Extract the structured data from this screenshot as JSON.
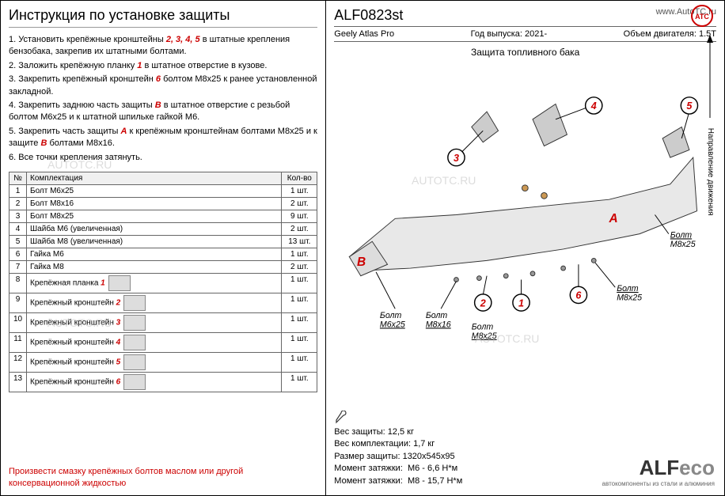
{
  "colors": {
    "accent": "#c00",
    "border": "#666",
    "muted": "#888"
  },
  "left": {
    "title": "Инструкция по установке защиты",
    "steps": {
      "s1a": "1. Установить крепёжные кронштейны ",
      "s1nums": "2, 3, 4, 5",
      "s1b": " в штатные крепления бензобака, закрепив их штатными болтами.",
      "s2a": "2. Заложить крепёжную планку ",
      "s2num": "1",
      "s2b": " в штатное отверстие в кузове.",
      "s3a": "3. Закрепить крепёжный кронштейн ",
      "s3num": "6",
      "s3b": " болтом M8x25 к ранее установленной закладной.",
      "s4a": "4. Закрепить заднюю часть защиты ",
      "s4num": "В",
      "s4b": " в штатное отверстие с резьбой болтом M6x25 и к штатной шпильке гайкой M6.",
      "s5a": "5. Закрепить часть защиты ",
      "s5numA": "А",
      "s5m": " к крепёжным кронштейнам болтами M8x25 и к защите ",
      "s5numB": "В",
      "s5b": " болтами M8x16.",
      "s6": "6. Все точки крепления затянуть."
    },
    "table": {
      "h_no": "№",
      "h_name": "Комплектация",
      "h_qty": "Кол-во",
      "rows": [
        {
          "no": "1",
          "name": "Болт M6x25",
          "qty": "1 шт.",
          "img": false
        },
        {
          "no": "2",
          "name": "Болт M8x16",
          "qty": "2 шт.",
          "img": false
        },
        {
          "no": "3",
          "name": "Болт M8x25",
          "qty": "9 шт.",
          "img": false
        },
        {
          "no": "4",
          "name": "Шайба M6 (увеличенная)",
          "qty": "2 шт.",
          "img": false
        },
        {
          "no": "5",
          "name": "Шайба M8 (увеличенная)",
          "qty": "13 шт.",
          "img": false
        },
        {
          "no": "6",
          "name": "Гайка M6",
          "qty": "1 шт.",
          "img": false
        },
        {
          "no": "7",
          "name": "Гайка M8",
          "qty": "2 шт.",
          "img": false
        },
        {
          "no": "8",
          "name": "Крепёжная планка",
          "mark": "1",
          "qty": "1 шт.",
          "img": true
        },
        {
          "no": "9",
          "name": "Крепёжный кронштейн",
          "mark": "2",
          "qty": "1 шт.",
          "img": true
        },
        {
          "no": "10",
          "name": "Крепёжный кронштейн",
          "mark": "3",
          "qty": "1 шт.",
          "img": true
        },
        {
          "no": "11",
          "name": "Крепёжный кронштейн",
          "mark": "4",
          "qty": "1 шт.",
          "img": true
        },
        {
          "no": "12",
          "name": "Крепёжный кронштейн",
          "mark": "5",
          "qty": "1 шт.",
          "img": true
        },
        {
          "no": "13",
          "name": "Крепёжный кронштейн",
          "mark": "6",
          "qty": "1 шт.",
          "img": true
        }
      ]
    },
    "footer1": "Произвести смазку крепёжных болтов маслом или другой",
    "footer2": "консервационной жидкостью"
  },
  "right": {
    "part_no": "ALF0823st",
    "website": "www.AutoTC.ru",
    "model": "Geely Atlas Pro",
    "year_label": "Год выпуска: ",
    "year": "2021-",
    "engine_label": "Объем двигателя: ",
    "engine": "1.5Т",
    "diagram_title": "Защита топливного бака",
    "direction": "Направление движения",
    "labels": {
      "bolt_m6x25": "Болт\nM6x25",
      "bolt_m8x16": "Болт\nM8x16",
      "bolt_m8x25": "Болт\nM8x25",
      "letterA": "А",
      "letterB": "В"
    },
    "callouts": [
      "1",
      "2",
      "3",
      "4",
      "5",
      "6"
    ],
    "specs": {
      "weight": "Вес защиты: 12,5 кг",
      "kit_weight": "Вес комплектации: 1,7 кг",
      "size": "Размер защиты: 1320x545x95",
      "torque_label": "Момент затяжки:",
      "torque_m6": "M6 - 6,6 Н*м",
      "torque_m8": "M8 - 15,7 Н*м"
    },
    "logo": {
      "main": "ALF",
      "eco": "eco",
      "sub": "автокомпоненты из стали и алюминия"
    }
  },
  "watermarks": [
    "AUTOTC.RU",
    "AUTOTC.RU",
    "AUTOTC.RU",
    "AUTOTC.RU"
  ]
}
